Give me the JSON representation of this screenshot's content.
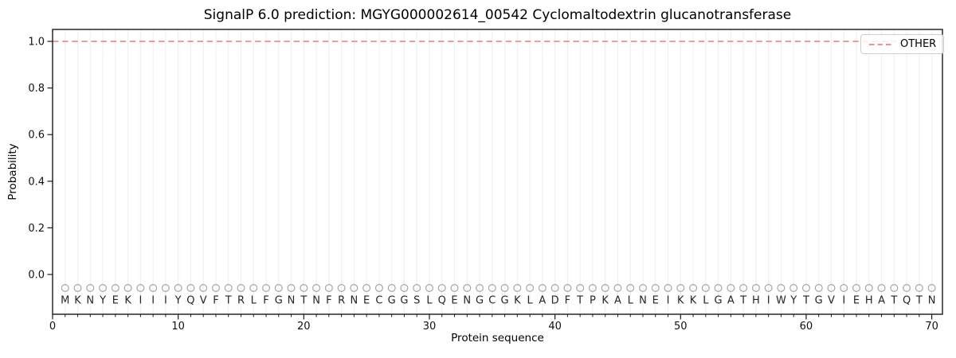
{
  "figure": {
    "background": "#ffffff",
    "spine_color": "#1a1a1a"
  },
  "chart_data": {
    "type": "line",
    "title": "SignalP 6.0 prediction: MGYG000002614_00542 Cyclomaltodextrin glucanotransferase",
    "xlabel": "Protein sequence",
    "ylabel": "Probability",
    "xlim": [
      0,
      70.85
    ],
    "ylim": [
      -0.17,
      1.05
    ],
    "xticks": [
      0,
      10,
      20,
      30,
      40,
      50,
      60,
      70
    ],
    "x_minor_tick_every": 1,
    "yticks": [
      0.0,
      0.2,
      0.4,
      0.6,
      0.8,
      1.0
    ],
    "grid": {
      "show": true,
      "orientation": "vertical",
      "per_residue": true,
      "color": "#f0f0f0"
    },
    "legend": {
      "position": "upper-right",
      "entries": [
        {
          "label": "OTHER",
          "color": "#f08080",
          "line_style": "dashed"
        }
      ]
    },
    "series": [
      {
        "name": "OTHER",
        "color": "#f08080",
        "line_style": "dashed",
        "note": "constant probability 1.0 across all 70 residue positions, drawn edge-to-edge",
        "values": [
          1,
          1,
          1,
          1,
          1,
          1,
          1,
          1,
          1,
          1,
          1,
          1,
          1,
          1,
          1,
          1,
          1,
          1,
          1,
          1,
          1,
          1,
          1,
          1,
          1,
          1,
          1,
          1,
          1,
          1,
          1,
          1,
          1,
          1,
          1,
          1,
          1,
          1,
          1,
          1,
          1,
          1,
          1,
          1,
          1,
          1,
          1,
          1,
          1,
          1,
          1,
          1,
          1,
          1,
          1,
          1,
          1,
          1,
          1,
          1,
          1,
          1,
          1,
          1,
          1,
          1,
          1,
          1,
          1,
          1
        ]
      }
    ],
    "sequence": {
      "residues": "MKNYEKIIIYQVFTRLFGNTNFRNECGGSLQENGCGKLADFTPKALNEIKKLGATHIWYTGVIEHATQTN",
      "length": 70,
      "first_position": 1,
      "marker": "open-circle",
      "marker_color": "#a6a6a6",
      "letter_color": "#262626"
    }
  }
}
